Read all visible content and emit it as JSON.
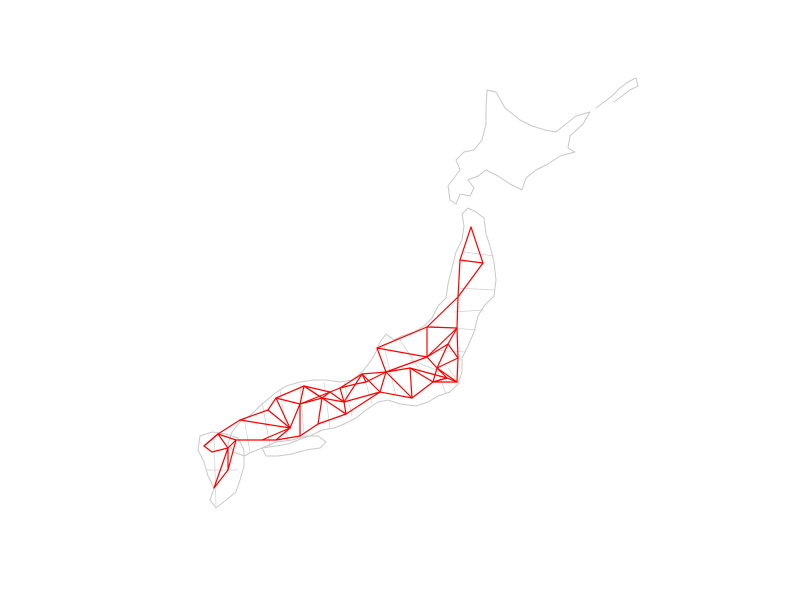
{
  "map": {
    "coast_color": "#c8c8c8",
    "network_color": "#ff0000",
    "background": "#ffffff"
  }
}
